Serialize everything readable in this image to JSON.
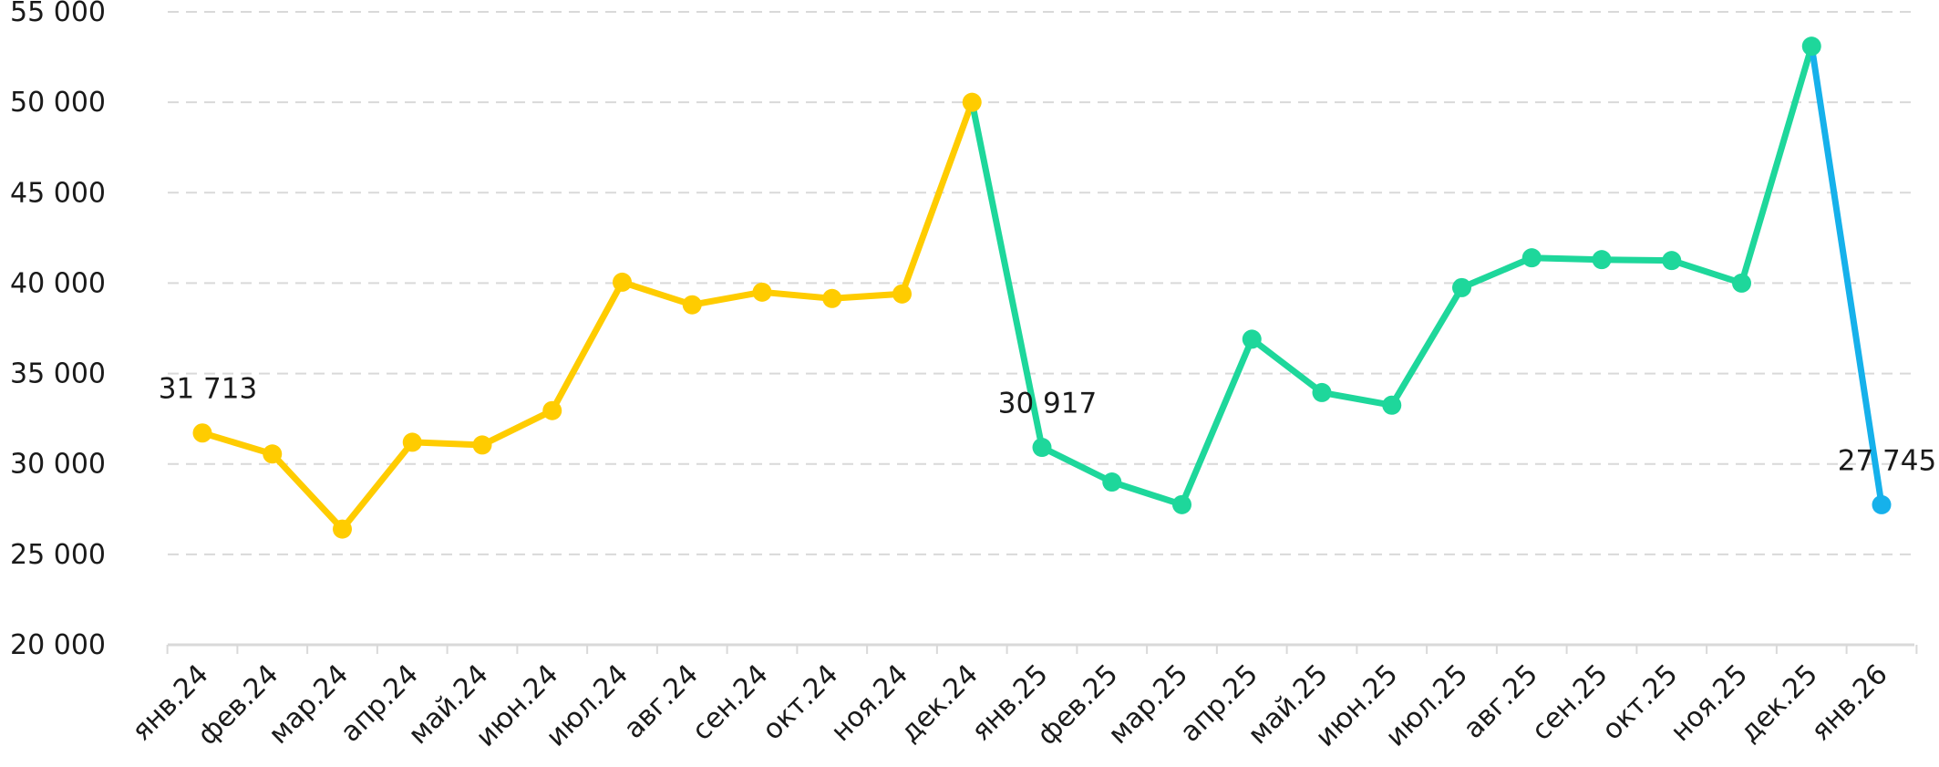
{
  "chart_data": {
    "type": "line",
    "categories": [
      "янв.24",
      "фев.24",
      "мар.24",
      "апр.24",
      "май.24",
      "июн.24",
      "июл.24",
      "авг.24",
      "сен.24",
      "окт.24",
      "ноя.24",
      "дек.24",
      "янв.25",
      "фев.25",
      "мар.25",
      "апр.25",
      "май.25",
      "июн.25",
      "июл.25",
      "авг.25",
      "сен.25",
      "окт.25",
      "ноя.25",
      "дек.25",
      "янв.26"
    ],
    "values": [
      31713,
      30550,
      26400,
      31200,
      31050,
      32950,
      40050,
      38800,
      39500,
      39150,
      39400,
      50000,
      30917,
      29000,
      27750,
      36900,
      33950,
      33250,
      39750,
      41400,
      41300,
      41250,
      40000,
      53100,
      27745
    ],
    "segments": [
      {
        "from": 0,
        "to": 11,
        "color": "#FFCC00"
      },
      {
        "from": 11,
        "to": 23,
        "color": "#1ED79B"
      },
      {
        "from": 23,
        "to": 24,
        "color": "#16B1EB"
      }
    ],
    "point_colors": [
      "#FFCC00",
      "#FFCC00",
      "#FFCC00",
      "#FFCC00",
      "#FFCC00",
      "#FFCC00",
      "#FFCC00",
      "#FFCC00",
      "#FFCC00",
      "#FFCC00",
      "#FFCC00",
      "#FFCC00",
      "#1ED79B",
      "#1ED79B",
      "#1ED79B",
      "#1ED79B",
      "#1ED79B",
      "#1ED79B",
      "#1ED79B",
      "#1ED79B",
      "#1ED79B",
      "#1ED79B",
      "#1ED79B",
      "#1ED79B",
      "#16B1EB"
    ],
    "data_labels": [
      {
        "index": 0,
        "text": "31 713"
      },
      {
        "index": 12,
        "text": "30 917"
      },
      {
        "index": 24,
        "text": "27 745"
      }
    ],
    "ylim": [
      20000,
      55000
    ],
    "yticks": [
      20000,
      25000,
      30000,
      35000,
      40000,
      45000,
      50000,
      55000
    ],
    "ytick_labels": [
      "20 000",
      "25 000",
      "30 000",
      "35 000",
      "40 000",
      "45 000",
      "50 000",
      "55 000"
    ],
    "grid": true,
    "title": "",
    "xlabel": "",
    "ylabel": ""
  }
}
